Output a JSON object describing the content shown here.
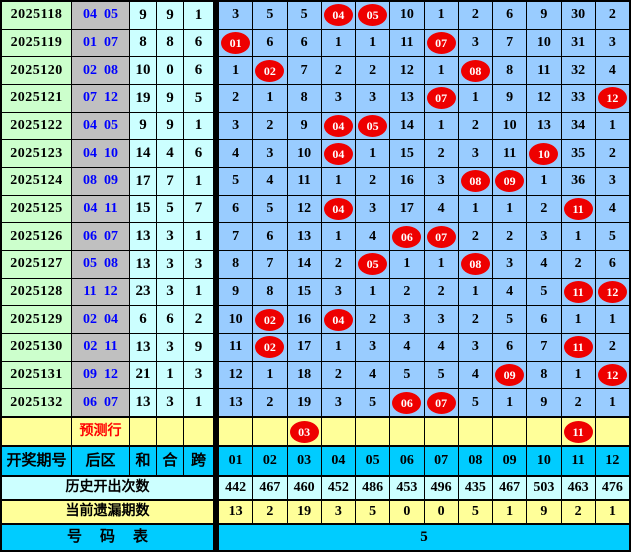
{
  "chart_data": {
    "type": "table",
    "headers": {
      "period": "开奖期号",
      "zone": "后区",
      "sum": "和",
      "combine": "合",
      "span": "跨"
    },
    "grid_header": [
      "01",
      "02",
      "03",
      "04",
      "05",
      "06",
      "07",
      "08",
      "09",
      "10",
      "11",
      "12"
    ],
    "rows": [
      {
        "period": "2025118",
        "balls": [
          "04",
          "05"
        ],
        "sum": "9",
        "combine": "9",
        "span": "1",
        "cells": [
          "3",
          "5",
          "5",
          "04",
          "05",
          "10",
          "1",
          "2",
          "6",
          "9",
          "30",
          "2"
        ],
        "hits": [
          4,
          5
        ]
      },
      {
        "period": "2025119",
        "balls": [
          "01",
          "07"
        ],
        "sum": "8",
        "combine": "8",
        "span": "6",
        "cells": [
          "01",
          "6",
          "6",
          "1",
          "1",
          "11",
          "07",
          "3",
          "7",
          "10",
          "31",
          "3"
        ],
        "hits": [
          1,
          7
        ]
      },
      {
        "period": "2025120",
        "balls": [
          "02",
          "08"
        ],
        "sum": "10",
        "combine": "0",
        "span": "6",
        "cells": [
          "1",
          "02",
          "7",
          "2",
          "2",
          "12",
          "1",
          "08",
          "8",
          "11",
          "32",
          "4"
        ],
        "hits": [
          2,
          8
        ]
      },
      {
        "period": "2025121",
        "balls": [
          "07",
          "12"
        ],
        "sum": "19",
        "combine": "9",
        "span": "5",
        "cells": [
          "2",
          "1",
          "8",
          "3",
          "3",
          "13",
          "07",
          "1",
          "9",
          "12",
          "33",
          "12"
        ],
        "hits": [
          7,
          12
        ]
      },
      {
        "period": "2025122",
        "balls": [
          "04",
          "05"
        ],
        "sum": "9",
        "combine": "9",
        "span": "1",
        "cells": [
          "3",
          "2",
          "9",
          "04",
          "05",
          "14",
          "1",
          "2",
          "10",
          "13",
          "34",
          "1"
        ],
        "hits": [
          4,
          5
        ]
      },
      {
        "period": "2025123",
        "balls": [
          "04",
          "10"
        ],
        "sum": "14",
        "combine": "4",
        "span": "6",
        "cells": [
          "4",
          "3",
          "10",
          "04",
          "1",
          "15",
          "2",
          "3",
          "11",
          "10",
          "35",
          "2"
        ],
        "hits": [
          4,
          10
        ]
      },
      {
        "period": "2025124",
        "balls": [
          "08",
          "09"
        ],
        "sum": "17",
        "combine": "7",
        "span": "1",
        "cells": [
          "5",
          "4",
          "11",
          "1",
          "2",
          "16",
          "3",
          "08",
          "09",
          "1",
          "36",
          "3"
        ],
        "hits": [
          8,
          9
        ]
      },
      {
        "period": "2025125",
        "balls": [
          "04",
          "11"
        ],
        "sum": "15",
        "combine": "5",
        "span": "7",
        "cells": [
          "6",
          "5",
          "12",
          "04",
          "3",
          "17",
          "4",
          "1",
          "1",
          "2",
          "11",
          "4"
        ],
        "hits": [
          4,
          11
        ]
      },
      {
        "period": "2025126",
        "balls": [
          "06",
          "07"
        ],
        "sum": "13",
        "combine": "3",
        "span": "1",
        "cells": [
          "7",
          "6",
          "13",
          "1",
          "4",
          "06",
          "07",
          "2",
          "2",
          "3",
          "1",
          "5"
        ],
        "hits": [
          6,
          7
        ]
      },
      {
        "period": "2025127",
        "balls": [
          "05",
          "08"
        ],
        "sum": "13",
        "combine": "3",
        "span": "3",
        "cells": [
          "8",
          "7",
          "14",
          "2",
          "05",
          "1",
          "1",
          "08",
          "3",
          "4",
          "2",
          "6"
        ],
        "hits": [
          5,
          8
        ]
      },
      {
        "period": "2025128",
        "balls": [
          "11",
          "12"
        ],
        "sum": "23",
        "combine": "3",
        "span": "1",
        "cells": [
          "9",
          "8",
          "15",
          "3",
          "1",
          "2",
          "2",
          "1",
          "4",
          "5",
          "11",
          "12"
        ],
        "hits": [
          11,
          12
        ]
      },
      {
        "period": "2025129",
        "balls": [
          "02",
          "04"
        ],
        "sum": "6",
        "combine": "6",
        "span": "2",
        "cells": [
          "10",
          "02",
          "16",
          "04",
          "2",
          "3",
          "3",
          "2",
          "5",
          "6",
          "1",
          "1"
        ],
        "hits": [
          2,
          4
        ]
      },
      {
        "period": "2025130",
        "balls": [
          "02",
          "11"
        ],
        "sum": "13",
        "combine": "3",
        "span": "9",
        "cells": [
          "11",
          "02",
          "17",
          "1",
          "3",
          "4",
          "4",
          "3",
          "6",
          "7",
          "11",
          "2"
        ],
        "hits": [
          2,
          11
        ]
      },
      {
        "period": "2025131",
        "balls": [
          "09",
          "12"
        ],
        "sum": "21",
        "combine": "1",
        "span": "3",
        "cells": [
          "12",
          "1",
          "18",
          "2",
          "4",
          "5",
          "5",
          "4",
          "09",
          "8",
          "1",
          "12"
        ],
        "hits": [
          9,
          12
        ]
      },
      {
        "period": "2025132",
        "balls": [
          "06",
          "07"
        ],
        "sum": "13",
        "combine": "3",
        "span": "1",
        "cells": [
          "13",
          "2",
          "19",
          "3",
          "5",
          "06",
          "07",
          "5",
          "1",
          "9",
          "2",
          "1"
        ],
        "hits": [
          6,
          7
        ]
      }
    ],
    "prediction": {
      "label": "预测行",
      "hits": {
        "3": "03",
        "11": "11"
      }
    },
    "history_label": "历史开出次数",
    "history": [
      "442",
      "467",
      "460",
      "452",
      "486",
      "453",
      "496",
      "435",
      "467",
      "503",
      "463",
      "476"
    ],
    "missing_label": "当前遗漏期数",
    "missing": [
      "13",
      "2",
      "19",
      "3",
      "5",
      "0",
      "0",
      "5",
      "1",
      "9",
      "2",
      "1"
    ],
    "footer": {
      "label": "号码表",
      "value": "5"
    },
    "colors": {
      "grid_blue": "#99ccff",
      "period_green": "#ccffcc",
      "zone_gray": "#c0c0c0",
      "stat_cyan": "#ccffff",
      "band_cyan": "#00ccff",
      "band_yellow": "#ffff99",
      "ball_red": "#ee0000",
      "zone_text_blue": "#0000ff",
      "prediction_text_red": "#ff0000"
    }
  }
}
